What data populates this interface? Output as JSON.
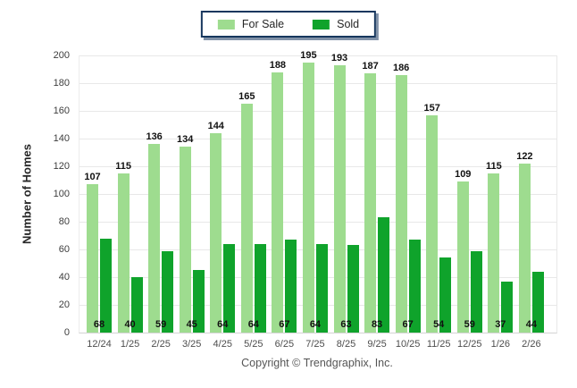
{
  "legend": {
    "items": [
      {
        "label": "For Sale",
        "color": "#9EDC8F"
      },
      {
        "label": "Sold",
        "color": "#0FA32B"
      }
    ]
  },
  "footer": {
    "copyright": "Copyright © Trendgraphix, Inc."
  },
  "chart_data": {
    "type": "bar",
    "title": "",
    "xlabel": "",
    "ylabel": "Number of Homes",
    "ylim": [
      0,
      200
    ],
    "y_ticks": [
      0,
      20,
      40,
      60,
      80,
      100,
      120,
      140,
      160,
      180,
      200
    ],
    "grid": true,
    "legend_position": "top-center",
    "categories": [
      "12/24",
      "1/25",
      "2/25",
      "3/25",
      "4/25",
      "5/25",
      "6/25",
      "7/25",
      "8/25",
      "9/25",
      "10/25",
      "11/25",
      "12/25",
      "1/26",
      "2/26"
    ],
    "series": [
      {
        "name": "For Sale",
        "color": "#9EDC8F",
        "values": [
          107,
          115,
          136,
          134,
          144,
          165,
          188,
          195,
          193,
          187,
          186,
          157,
          109,
          115,
          122
        ]
      },
      {
        "name": "Sold",
        "color": "#0FA32B",
        "values": [
          68,
          40,
          59,
          45,
          64,
          64,
          67,
          64,
          63,
          83,
          67,
          54,
          59,
          37,
          44
        ]
      }
    ]
  }
}
